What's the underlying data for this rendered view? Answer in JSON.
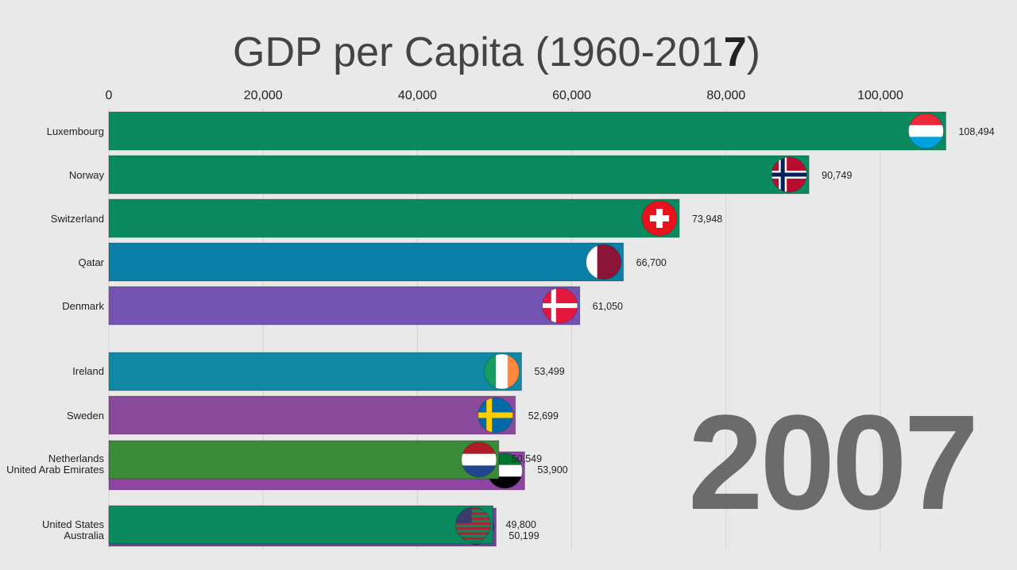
{
  "title": {
    "text": "GDP per Capita (1960-201",
    "highlight": "7",
    "close": ")"
  },
  "year": "2007",
  "chart_data": {
    "type": "bar",
    "orientation": "horizontal",
    "title": "GDP per Capita (1960-2017)",
    "xlim": [
      0,
      110000
    ],
    "ticks": [
      0,
      20000,
      40000,
      60000,
      80000,
      100000
    ],
    "tick_labels": [
      "0",
      "20,000",
      "40,000",
      "60,000",
      "80,000",
      "100,000"
    ],
    "grid": true,
    "categories": [
      "Luxembourg",
      "Norway",
      "Switzerland",
      "Qatar",
      "Denmark",
      "Ireland",
      "Sweden",
      "Netherlands",
      "United Arab Emirates",
      "United States",
      "Australia"
    ],
    "values": [
      108494,
      90749,
      73948,
      66700,
      61050,
      53499,
      52699,
      50549,
      53900,
      49800,
      50199
    ],
    "value_labels": [
      "108,494",
      "90,749",
      "73,948",
      "66,700",
      "61,050",
      "53,499",
      "52,699",
      "50,549",
      "53,900",
      "49,800",
      "50,199"
    ],
    "colors": [
      "#0a8a5e",
      "#0a8a5e",
      "#0a8a5e",
      "#0b7fa6",
      "#7253b0",
      "#1087a3",
      "#8a4a9c",
      "#3b8a3a",
      "#8e45a1",
      "#0a8a5e",
      "#7a3fa0"
    ],
    "flags": [
      "luxembourg-flag",
      "norway-flag",
      "switzerland-flag",
      "qatar-flag",
      "denmark-flag",
      "ireland-flag",
      "sweden-flag",
      "netherlands-flag",
      "uae-flag",
      "usa-flag",
      "australia-flag"
    ]
  }
}
